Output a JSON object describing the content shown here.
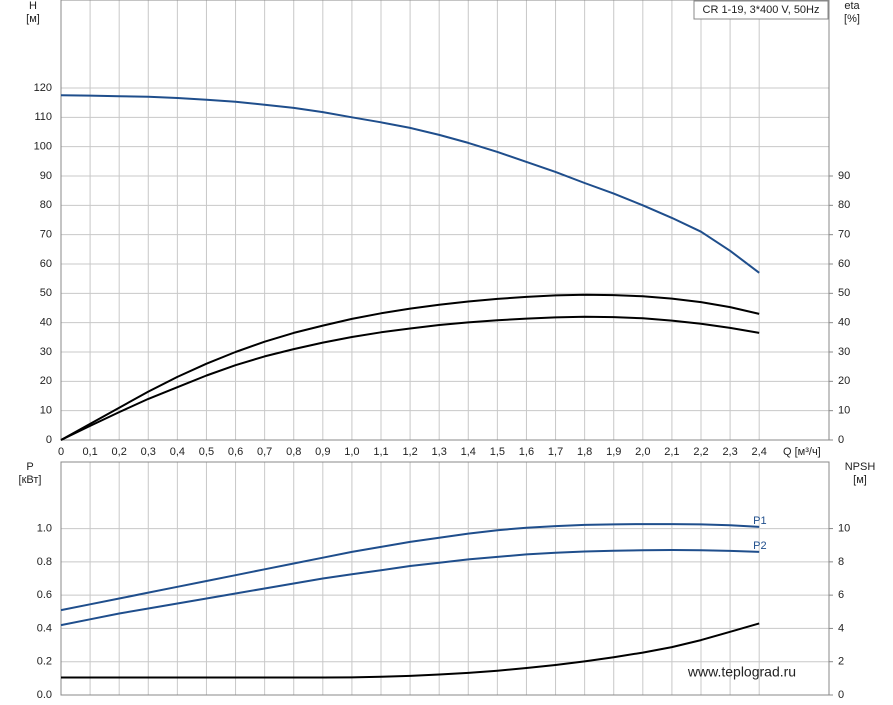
{
  "chart_data": [
    {
      "type": "line",
      "title": "CR 1-19, 3*400 V, 50Hz",
      "ylabel": "H",
      "yunit": "[м]",
      "y2label": "eta",
      "y2unit": "[%]",
      "xlabel": "Q [м³/ч]",
      "x": [
        0,
        0.1,
        0.2,
        0.3,
        0.4,
        0.5,
        0.6,
        0.7,
        0.8,
        0.9,
        1.0,
        1.1,
        1.2,
        1.3,
        1.4,
        1.5,
        1.6,
        1.7,
        1.8,
        1.9,
        2.0,
        2.1,
        2.2,
        2.3,
        2.4
      ],
      "series": [
        {
          "color": "#1f4e8c",
          "values": [
            117.5,
            117.4,
            117.2,
            117,
            116.6,
            116,
            115.3,
            114.3,
            113.2,
            111.8,
            110,
            108.3,
            106.4,
            104,
            101.3,
            98.2,
            94.8,
            91.4,
            87.6,
            84,
            80,
            75.7,
            71,
            64.5,
            57
          ]
        },
        {
          "color": "#000000",
          "axis": "y2",
          "values": [
            0,
            5.5,
            11,
            16.5,
            21.5,
            26,
            30,
            33.5,
            36.5,
            39,
            41.3,
            43.2,
            44.8,
            46.1,
            47.2,
            48.1,
            48.8,
            49.3,
            49.5,
            49.4,
            49,
            48.2,
            47,
            45.3,
            43
          ]
        },
        {
          "color": "#000000",
          "axis": "y2",
          "values": [
            0,
            4.8,
            9.5,
            14,
            18,
            22,
            25.5,
            28.5,
            31,
            33.2,
            35.1,
            36.7,
            38,
            39.2,
            40.1,
            40.8,
            41.4,
            41.8,
            42,
            41.9,
            41.5,
            40.7,
            39.6,
            38.2,
            36.5
          ]
        }
      ],
      "xlim": [
        0,
        2.64
      ],
      "xticks": [
        0,
        {
          "value": 0.1,
          "label": "0,1"
        },
        {
          "value": 0.2,
          "label": "0,2"
        },
        {
          "value": 0.3,
          "label": "0,3"
        },
        {
          "value": 0.4,
          "label": "0,4"
        },
        {
          "value": 0.5,
          "label": "0,5"
        },
        {
          "value": 0.6,
          "label": "0,6"
        },
        {
          "value": 0.7,
          "label": "0,7"
        },
        {
          "value": 0.8,
          "label": "0,8"
        },
        {
          "value": 0.9,
          "label": "0,9"
        },
        {
          "value": 1.0,
          "label": "1,0"
        },
        {
          "value": 1.1,
          "label": "1,1"
        },
        {
          "value": 1.2,
          "label": "1,2"
        },
        {
          "value": 1.3,
          "label": "1,3"
        },
        {
          "value": 1.4,
          "label": "1,4"
        },
        {
          "value": 1.5,
          "label": "1,5"
        },
        {
          "value": 1.6,
          "label": "1,6"
        },
        {
          "value": 1.7,
          "label": "1,7"
        },
        {
          "value": 1.8,
          "label": "1,8"
        },
        {
          "value": 1.9,
          "label": "1,9"
        },
        {
          "value": 2.0,
          "label": "2,0"
        },
        {
          "value": 2.1,
          "label": "2,1"
        },
        {
          "value": 2.2,
          "label": "2,2"
        },
        {
          "value": 2.3,
          "label": "2,3"
        },
        {
          "value": 2.4,
          "label": "2,4"
        }
      ],
      "ylim": [
        0,
        150
      ],
      "yticks": [
        0,
        10,
        20,
        30,
        40,
        50,
        60,
        70,
        80,
        90,
        100,
        110,
        120
      ],
      "y2lim": [
        0,
        150
      ],
      "y2ticks": [
        0,
        10,
        20,
        30,
        40,
        50,
        60,
        70,
        80,
        90
      ],
      "grid": true
    },
    {
      "type": "line",
      "ylabel": "P",
      "yunit": "[кВт]",
      "y2label": "NPSH",
      "y2unit": "[м]",
      "watermark": "www.teplograd.ru",
      "x": [
        0,
        0.1,
        0.2,
        0.3,
        0.4,
        0.5,
        0.6,
        0.7,
        0.8,
        0.9,
        1.0,
        1.1,
        1.2,
        1.3,
        1.4,
        1.5,
        1.6,
        1.7,
        1.8,
        1.9,
        2.0,
        2.1,
        2.2,
        2.3,
        2.4
      ],
      "series": [
        {
          "name": "P1",
          "color": "#1f4e8c",
          "values": [
            0.51,
            0.545,
            0.58,
            0.615,
            0.65,
            0.685,
            0.72,
            0.755,
            0.79,
            0.825,
            0.86,
            0.89,
            0.92,
            0.945,
            0.97,
            0.99,
            1.005,
            1.015,
            1.022,
            1.025,
            1.027,
            1.027,
            1.025,
            1.02,
            1.01
          ]
        },
        {
          "name": "P2",
          "color": "#1f4e8c",
          "values": [
            0.42,
            0.455,
            0.49,
            0.52,
            0.55,
            0.58,
            0.61,
            0.64,
            0.67,
            0.7,
            0.725,
            0.75,
            0.775,
            0.795,
            0.815,
            0.83,
            0.845,
            0.855,
            0.862,
            0.867,
            0.87,
            0.871,
            0.87,
            0.866,
            0.86
          ]
        },
        {
          "color": "#000000",
          "axis": "y2",
          "values": [
            1.05,
            1.05,
            1.05,
            1.05,
            1.05,
            1.05,
            1.05,
            1.05,
            1.05,
            1.05,
            1.06,
            1.1,
            1.15,
            1.23,
            1.33,
            1.46,
            1.62,
            1.8,
            2.02,
            2.27,
            2.55,
            2.88,
            3.3,
            3.8,
            4.3
          ]
        }
      ],
      "xlim": [
        0,
        2.64
      ],
      "ylim": [
        0,
        1.4
      ],
      "yticks": [
        {
          "value": 0,
          "label": "0.0"
        },
        0.2,
        0.4,
        0.6,
        0.8,
        {
          "value": 1,
          "label": "1.0"
        }
      ],
      "y2lim": [
        0,
        14
      ],
      "y2ticks": [
        0,
        2,
        4,
        6,
        8,
        10
      ],
      "grid": true
    }
  ]
}
